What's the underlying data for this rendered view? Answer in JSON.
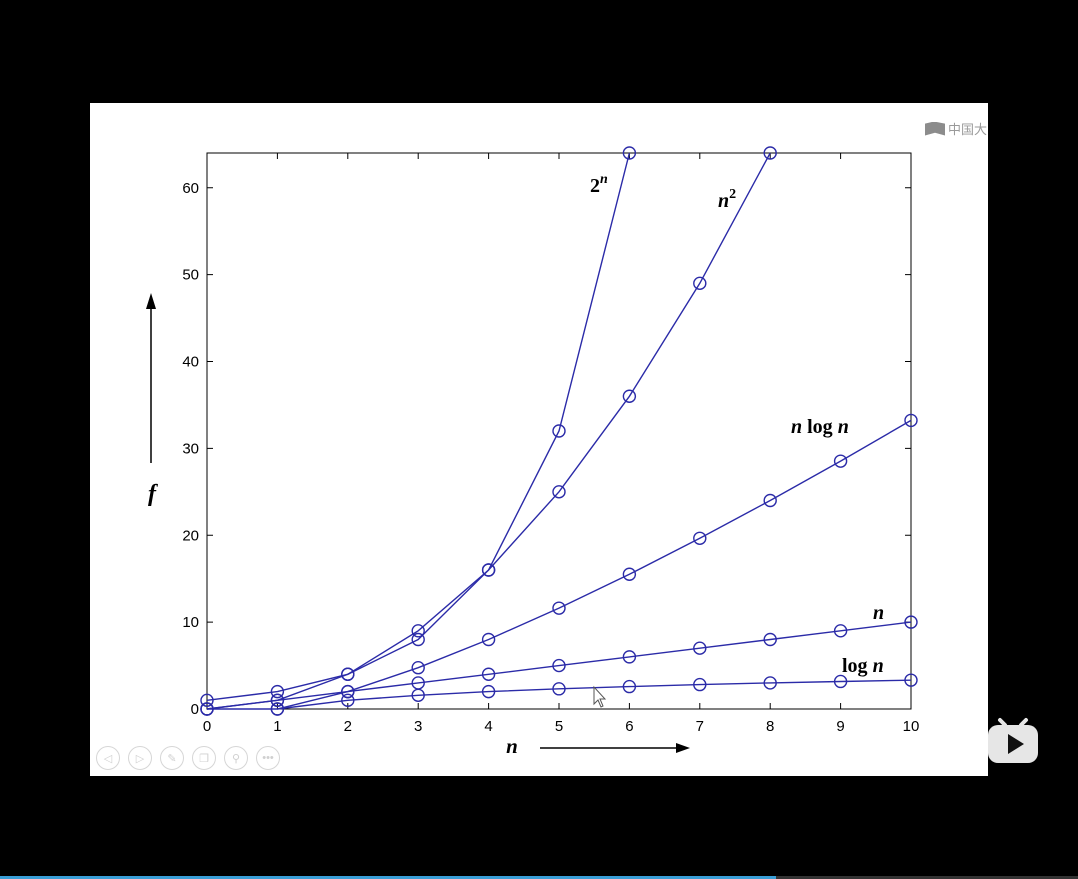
{
  "chart_data": {
    "type": "line",
    "title": "",
    "xlabel": "n",
    "ylabel": "f",
    "xlim": [
      0,
      10
    ],
    "ylim": [
      0,
      64
    ],
    "x_ticks": [
      0,
      1,
      2,
      3,
      4,
      5,
      6,
      7,
      8,
      9,
      10
    ],
    "y_ticks": [
      0,
      10,
      20,
      30,
      40,
      50,
      60
    ],
    "grid": false,
    "markers": "open-circle",
    "series": [
      {
        "name": "2^n",
        "label_base": "2",
        "label_sup": "n",
        "x": [
          0,
          1,
          2,
          3,
          4,
          5,
          6
        ],
        "values": [
          1,
          2,
          4,
          8,
          16,
          32,
          64
        ]
      },
      {
        "name": "n^2",
        "label_base": "n",
        "label_sup": "2",
        "x": [
          0,
          1,
          2,
          3,
          4,
          5,
          6,
          7,
          8
        ],
        "values": [
          0,
          1,
          4,
          9,
          16,
          25,
          36,
          49,
          64
        ]
      },
      {
        "name": "n log n",
        "x": [
          0,
          1,
          2,
          3,
          4,
          5,
          6,
          7,
          8,
          9,
          10
        ],
        "values": [
          0,
          0,
          2,
          4.75,
          8,
          11.61,
          15.51,
          19.65,
          24,
          28.53,
          33.22
        ]
      },
      {
        "name": "n",
        "x": [
          0,
          1,
          2,
          3,
          4,
          5,
          6,
          7,
          8,
          9,
          10
        ],
        "values": [
          0,
          1,
          2,
          3,
          4,
          5,
          6,
          7,
          8,
          9,
          10
        ]
      },
      {
        "name": "log n",
        "x": [
          1,
          2,
          3,
          4,
          5,
          6,
          7,
          8,
          9,
          10
        ],
        "values": [
          0,
          1,
          1.58,
          2,
          2.32,
          2.58,
          2.81,
          3,
          3.17,
          3.32
        ]
      }
    ],
    "series_color": "#2b2ba8"
  },
  "watermark": {
    "text": "中国大"
  },
  "controls": [
    {
      "icon": "prev-icon",
      "glyph": "◁"
    },
    {
      "icon": "next-icon",
      "glyph": "▷"
    },
    {
      "icon": "pen-icon",
      "glyph": "✎"
    },
    {
      "icon": "copy-icon",
      "glyph": "❐"
    },
    {
      "icon": "zoom-icon",
      "glyph": "⚲"
    },
    {
      "icon": "more-icon",
      "glyph": "•••"
    }
  ],
  "player": {
    "play_icon": "play-icon",
    "accent": "#e6e6e6",
    "progress": 0.72
  }
}
